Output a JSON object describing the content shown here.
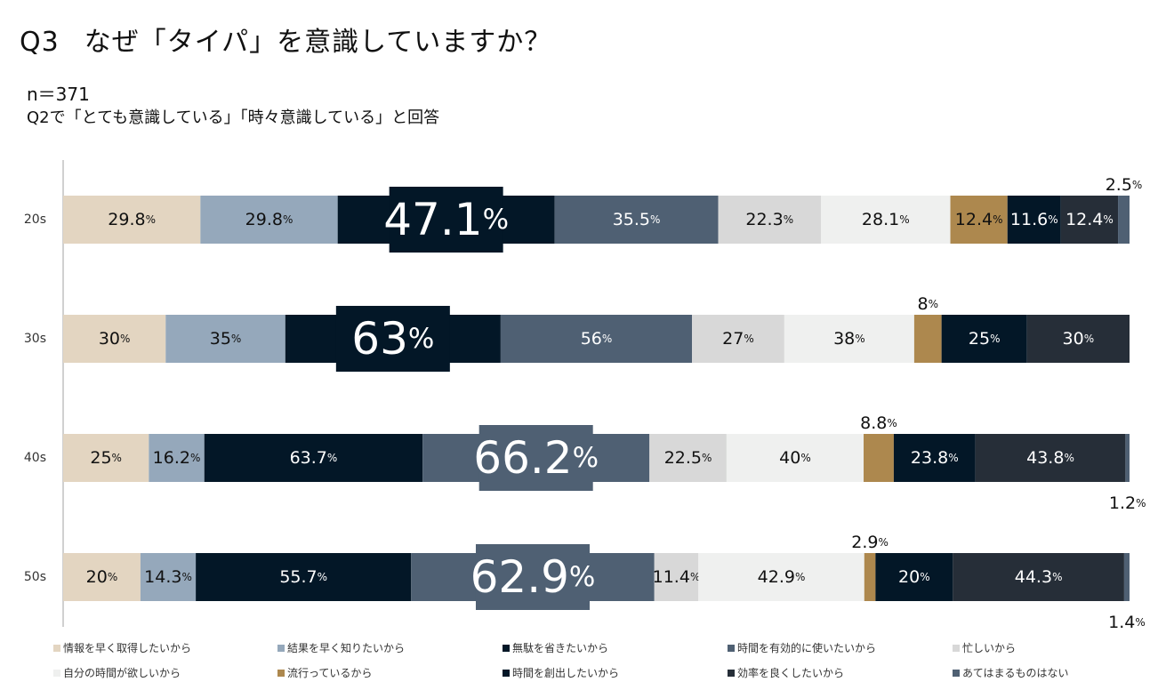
{
  "header": {
    "question_no": "Q3",
    "title": "なぜ「タイパ」を意識していますか？",
    "sample": "n＝371",
    "condition": "Q2で「とても意識している」「時々意識している」と回答"
  },
  "chart_data": {
    "type": "bar",
    "orientation": "horizontal-stacked",
    "value_suffix": "%",
    "categories": [
      "20s",
      "30s",
      "40s",
      "50s"
    ],
    "series": [
      {
        "name": "情報を早く取得したいから",
        "color": "#e3d5c1",
        "values": [
          29.8,
          30,
          25,
          20
        ]
      },
      {
        "name": "結果を早く知りたいから",
        "color": "#95a8bb",
        "values": [
          29.8,
          35,
          16.2,
          14.3
        ]
      },
      {
        "name": "無駄を省きたいから",
        "color": "#031727",
        "values": [
          47.1,
          63,
          63.7,
          55.7
        ]
      },
      {
        "name": "時間を有効的に使いたいから",
        "color": "#4f6073",
        "values": [
          35.5,
          56,
          66.2,
          62.9
        ]
      },
      {
        "name": "忙しいから",
        "color": "#d8d8d8",
        "values": [
          22.3,
          27,
          22.5,
          11.4
        ]
      },
      {
        "name": "自分の時間が欲しいから",
        "color": "#eff0ef",
        "values": [
          28.1,
          38,
          40,
          42.9
        ]
      },
      {
        "name": "流行っているから",
        "color": "#ad884e",
        "values": [
          12.4,
          8,
          8.8,
          2.9
        ]
      },
      {
        "name": "時間を創出したいから",
        "color": "#031727",
        "values": [
          11.6,
          25,
          23.8,
          20
        ]
      },
      {
        "name": "効率を良くしたいから",
        "color": "#262e38",
        "values": [
          12.4,
          30,
          43.8,
          44.3
        ]
      },
      {
        "name": "あてはまるものはない",
        "color": "#4f6073",
        "values": [
          2.5,
          0,
          1.2,
          1.4
        ]
      }
    ]
  }
}
